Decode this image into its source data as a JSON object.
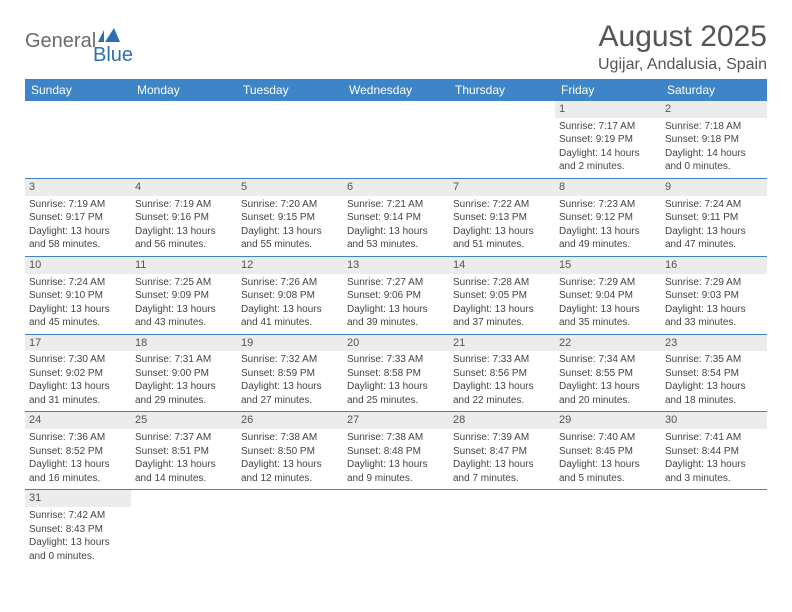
{
  "logo": {
    "text1": "General",
    "text2": "Blue"
  },
  "title": "August 2025",
  "location": "Ugijar, Andalusia, Spain",
  "colors": {
    "header_bg": "#3d85c6",
    "header_fg": "#ffffff",
    "daynum_bg": "#ececec",
    "row_border": "#3d85c6",
    "text": "#444444",
    "logo_gray": "#6a6a6a",
    "logo_blue": "#2d6fb5"
  },
  "weekdays": [
    "Sunday",
    "Monday",
    "Tuesday",
    "Wednesday",
    "Thursday",
    "Friday",
    "Saturday"
  ],
  "weeks": [
    [
      null,
      null,
      null,
      null,
      null,
      {
        "n": "1",
        "sr": "7:17 AM",
        "ss": "9:19 PM",
        "dl": "14 hours and 2 minutes."
      },
      {
        "n": "2",
        "sr": "7:18 AM",
        "ss": "9:18 PM",
        "dl": "14 hours and 0 minutes."
      }
    ],
    [
      {
        "n": "3",
        "sr": "7:19 AM",
        "ss": "9:17 PM",
        "dl": "13 hours and 58 minutes."
      },
      {
        "n": "4",
        "sr": "7:19 AM",
        "ss": "9:16 PM",
        "dl": "13 hours and 56 minutes."
      },
      {
        "n": "5",
        "sr": "7:20 AM",
        "ss": "9:15 PM",
        "dl": "13 hours and 55 minutes."
      },
      {
        "n": "6",
        "sr": "7:21 AM",
        "ss": "9:14 PM",
        "dl": "13 hours and 53 minutes."
      },
      {
        "n": "7",
        "sr": "7:22 AM",
        "ss": "9:13 PM",
        "dl": "13 hours and 51 minutes."
      },
      {
        "n": "8",
        "sr": "7:23 AM",
        "ss": "9:12 PM",
        "dl": "13 hours and 49 minutes."
      },
      {
        "n": "9",
        "sr": "7:24 AM",
        "ss": "9:11 PM",
        "dl": "13 hours and 47 minutes."
      }
    ],
    [
      {
        "n": "10",
        "sr": "7:24 AM",
        "ss": "9:10 PM",
        "dl": "13 hours and 45 minutes."
      },
      {
        "n": "11",
        "sr": "7:25 AM",
        "ss": "9:09 PM",
        "dl": "13 hours and 43 minutes."
      },
      {
        "n": "12",
        "sr": "7:26 AM",
        "ss": "9:08 PM",
        "dl": "13 hours and 41 minutes."
      },
      {
        "n": "13",
        "sr": "7:27 AM",
        "ss": "9:06 PM",
        "dl": "13 hours and 39 minutes."
      },
      {
        "n": "14",
        "sr": "7:28 AM",
        "ss": "9:05 PM",
        "dl": "13 hours and 37 minutes."
      },
      {
        "n": "15",
        "sr": "7:29 AM",
        "ss": "9:04 PM",
        "dl": "13 hours and 35 minutes."
      },
      {
        "n": "16",
        "sr": "7:29 AM",
        "ss": "9:03 PM",
        "dl": "13 hours and 33 minutes."
      }
    ],
    [
      {
        "n": "17",
        "sr": "7:30 AM",
        "ss": "9:02 PM",
        "dl": "13 hours and 31 minutes."
      },
      {
        "n": "18",
        "sr": "7:31 AM",
        "ss": "9:00 PM",
        "dl": "13 hours and 29 minutes."
      },
      {
        "n": "19",
        "sr": "7:32 AM",
        "ss": "8:59 PM",
        "dl": "13 hours and 27 minutes."
      },
      {
        "n": "20",
        "sr": "7:33 AM",
        "ss": "8:58 PM",
        "dl": "13 hours and 25 minutes."
      },
      {
        "n": "21",
        "sr": "7:33 AM",
        "ss": "8:56 PM",
        "dl": "13 hours and 22 minutes."
      },
      {
        "n": "22",
        "sr": "7:34 AM",
        "ss": "8:55 PM",
        "dl": "13 hours and 20 minutes."
      },
      {
        "n": "23",
        "sr": "7:35 AM",
        "ss": "8:54 PM",
        "dl": "13 hours and 18 minutes."
      }
    ],
    [
      {
        "n": "24",
        "sr": "7:36 AM",
        "ss": "8:52 PM",
        "dl": "13 hours and 16 minutes."
      },
      {
        "n": "25",
        "sr": "7:37 AM",
        "ss": "8:51 PM",
        "dl": "13 hours and 14 minutes."
      },
      {
        "n": "26",
        "sr": "7:38 AM",
        "ss": "8:50 PM",
        "dl": "13 hours and 12 minutes."
      },
      {
        "n": "27",
        "sr": "7:38 AM",
        "ss": "8:48 PM",
        "dl": "13 hours and 9 minutes."
      },
      {
        "n": "28",
        "sr": "7:39 AM",
        "ss": "8:47 PM",
        "dl": "13 hours and 7 minutes."
      },
      {
        "n": "29",
        "sr": "7:40 AM",
        "ss": "8:45 PM",
        "dl": "13 hours and 5 minutes."
      },
      {
        "n": "30",
        "sr": "7:41 AM",
        "ss": "8:44 PM",
        "dl": "13 hours and 3 minutes."
      }
    ],
    [
      {
        "n": "31",
        "sr": "7:42 AM",
        "ss": "8:43 PM",
        "dl": "13 hours and 0 minutes."
      },
      null,
      null,
      null,
      null,
      null,
      null
    ]
  ],
  "labels": {
    "sunrise": "Sunrise:",
    "sunset": "Sunset:",
    "daylight": "Daylight:"
  }
}
